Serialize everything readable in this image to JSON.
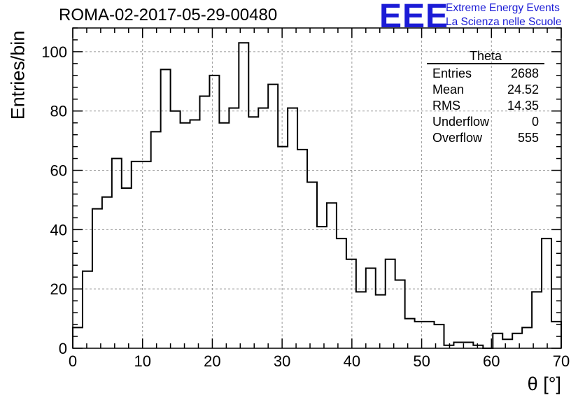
{
  "header": {
    "run_title": "ROMA-02-2017-05-29-00480",
    "logo_mark": "EEE",
    "logo_line1": "Extreme Energy Events",
    "logo_line2": "La Scienza nelle Scuole",
    "logo_color": "#1b1bd6"
  },
  "stats_box": {
    "title": "Theta",
    "rows": [
      {
        "label": "Entries",
        "value": "2688"
      },
      {
        "label": "Mean",
        "value": "24.52"
      },
      {
        "label": "RMS",
        "value": "14.35"
      },
      {
        "label": "Underflow",
        "value": "0"
      },
      {
        "label": "Overflow",
        "value": "555"
      }
    ]
  },
  "chart_data": {
    "type": "histogram",
    "title": "ROMA-02-2017-05-29-00480",
    "xlabel": "θ [°]",
    "ylabel": "Entries/bin",
    "xlim": [
      0,
      70
    ],
    "ylim": [
      0,
      108
    ],
    "bin_width": 1.4,
    "grid": true,
    "x_ticks": [
      0,
      10,
      20,
      30,
      40,
      50,
      60,
      70
    ],
    "y_ticks": [
      0,
      20,
      40,
      60,
      80,
      100
    ],
    "bin_edges_start": 0,
    "values": [
      7,
      26,
      47,
      51,
      64,
      54,
      63,
      63,
      73,
      94,
      80,
      76,
      77,
      85,
      92,
      76,
      81,
      103,
      78,
      81,
      89,
      68,
      81,
      67,
      56,
      41,
      49,
      37,
      30,
      19,
      27,
      18,
      30,
      23,
      10,
      9,
      9,
      8,
      1,
      2,
      2,
      1,
      0,
      5,
      3,
      5,
      7,
      19,
      37,
      9
    ]
  }
}
